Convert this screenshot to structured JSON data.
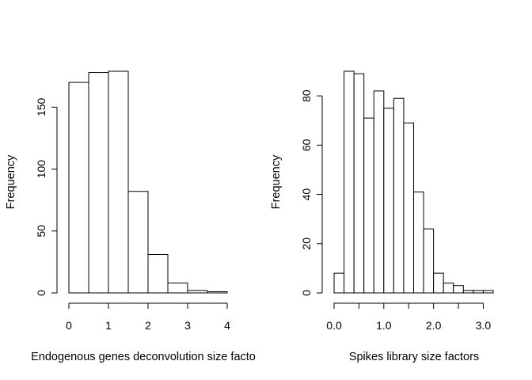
{
  "chart_data": [
    {
      "type": "bar",
      "subtype": "histogram",
      "title": "",
      "xlabel": "Endogenous genes deconvolution size facto",
      "ylabel": "Frequency",
      "bin_edges": [
        0,
        0.5,
        1.0,
        1.5,
        2.0,
        2.5,
        3.0,
        3.5,
        4.0
      ],
      "values": [
        170,
        178,
        179,
        82,
        31,
        8,
        2,
        1
      ],
      "xlim": [
        0,
        4
      ],
      "ylim": [
        0,
        179
      ],
      "x_ticks": [
        0,
        1,
        2,
        3,
        4
      ],
      "x_tick_labels": [
        "0",
        "1",
        "2",
        "3",
        "4"
      ],
      "y_ticks": [
        0,
        50,
        100,
        150
      ],
      "y_tick_labels": [
        "0",
        "50",
        "100",
        "150"
      ],
      "grid": false
    },
    {
      "type": "bar",
      "subtype": "histogram",
      "title": "",
      "xlabel": "Spikes library size factors",
      "ylabel": "Frequency",
      "bin_edges": [
        0.0,
        0.2,
        0.4,
        0.6,
        0.8,
        1.0,
        1.2,
        1.4,
        1.6,
        1.8,
        2.0,
        2.2,
        2.4,
        2.6,
        2.8,
        3.0,
        3.2
      ],
      "values": [
        8,
        90,
        89,
        71,
        82,
        75,
        79,
        69,
        41,
        26,
        8,
        4,
        3,
        1,
        1,
        1
      ],
      "xlim": [
        0.0,
        3.2
      ],
      "ylim": [
        0,
        90
      ],
      "x_ticks": [
        0.0,
        0.5,
        1.0,
        1.5,
        2.0,
        2.5,
        3.0
      ],
      "x_tick_labels": [
        "0.0",
        "",
        "1.0",
        "",
        "2.0",
        "",
        "3.0"
      ],
      "y_ticks": [
        0,
        20,
        40,
        60,
        80
      ],
      "y_tick_labels": [
        "0",
        "20",
        "40",
        "60",
        "80"
      ],
      "grid": false
    }
  ]
}
